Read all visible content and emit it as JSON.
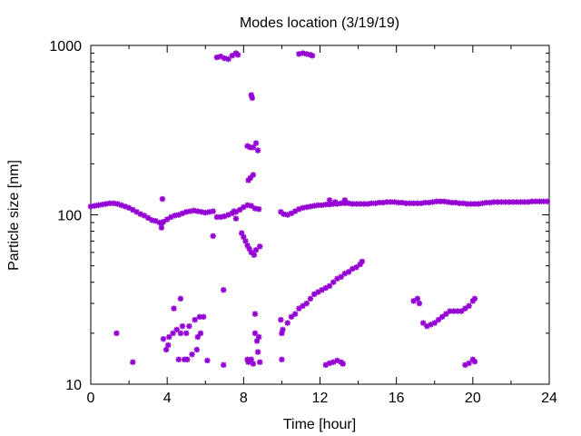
{
  "chart_data": {
    "type": "scatter",
    "title": "Modes location (3/19/19)",
    "xlabel": "Time [hour]",
    "ylabel": "Particle size [nm]",
    "xlim": [
      0,
      24
    ],
    "ylim": [
      10,
      1000
    ],
    "yscale": "log",
    "x_ticks": [
      0,
      4,
      8,
      12,
      16,
      20,
      24
    ],
    "x_tick_labels": [
      "0",
      "4",
      "8",
      "12",
      "16",
      "20",
      "24"
    ],
    "y_ticks": [
      10,
      100,
      1000
    ],
    "y_tick_labels": [
      "10",
      "100",
      "1000"
    ],
    "grid": false,
    "legend": "none",
    "marker_color": "#9400d3",
    "series": [
      {
        "points": [
          [
            0.0,
            112
          ],
          [
            0.2,
            113
          ],
          [
            0.4,
            114
          ],
          [
            0.6,
            115
          ],
          [
            0.8,
            116
          ],
          [
            1.0,
            117
          ],
          [
            1.2,
            117
          ],
          [
            1.4,
            116
          ],
          [
            1.6,
            114
          ],
          [
            1.8,
            112
          ],
          [
            2.0,
            110
          ],
          [
            2.2,
            107
          ],
          [
            2.4,
            104
          ],
          [
            2.6,
            101
          ],
          [
            2.8,
            99
          ],
          [
            3.0,
            96
          ],
          [
            3.2,
            93
          ],
          [
            3.4,
            92
          ],
          [
            3.6,
            90
          ],
          [
            3.7,
            89
          ],
          [
            3.8,
            91
          ],
          [
            4.0,
            94
          ],
          [
            4.2,
            97
          ],
          [
            4.4,
            99
          ],
          [
            4.6,
            100
          ],
          [
            4.8,
            102
          ],
          [
            5.0,
            104
          ],
          [
            5.2,
            105
          ],
          [
            5.4,
            106
          ],
          [
            5.6,
            105
          ],
          [
            5.8,
            104
          ],
          [
            6.0,
            103
          ],
          [
            6.2,
            104
          ],
          [
            6.4,
            105
          ],
          [
            6.6,
            97
          ],
          [
            6.8,
            97
          ],
          [
            7.0,
            98
          ],
          [
            7.2,
            100
          ],
          [
            7.4,
            102
          ],
          [
            7.6,
            104
          ],
          [
            7.8,
            107
          ],
          [
            8.0,
            111
          ],
          [
            8.2,
            114
          ],
          [
            8.4,
            113
          ],
          [
            8.6,
            109
          ],
          [
            8.8,
            108
          ],
          [
            9.95,
            104
          ],
          [
            10.1,
            101
          ],
          [
            10.3,
            100
          ],
          [
            10.5,
            102
          ],
          [
            10.7,
            105
          ],
          [
            10.9,
            108
          ],
          [
            11.1,
            110
          ],
          [
            11.3,
            111
          ],
          [
            11.5,
            112
          ],
          [
            11.7,
            113
          ],
          [
            11.9,
            114
          ],
          [
            12.1,
            114
          ],
          [
            12.3,
            115
          ],
          [
            12.5,
            115
          ],
          [
            12.7,
            116
          ],
          [
            12.9,
            116
          ],
          [
            13.1,
            117
          ],
          [
            13.3,
            117
          ],
          [
            13.5,
            117
          ],
          [
            13.7,
            116
          ],
          [
            13.9,
            116
          ],
          [
            14.1,
            116
          ],
          [
            14.3,
            116
          ],
          [
            14.5,
            116
          ],
          [
            14.7,
            117
          ],
          [
            14.9,
            117
          ],
          [
            15.1,
            118
          ],
          [
            15.3,
            118
          ],
          [
            15.5,
            119
          ],
          [
            15.7,
            119
          ],
          [
            15.9,
            119
          ],
          [
            16.1,
            118
          ],
          [
            16.3,
            118
          ],
          [
            16.5,
            117
          ],
          [
            16.7,
            117
          ],
          [
            16.9,
            117
          ],
          [
            17.1,
            117
          ],
          [
            17.3,
            117
          ],
          [
            17.5,
            118
          ],
          [
            17.7,
            118
          ],
          [
            17.9,
            119
          ],
          [
            18.1,
            120
          ],
          [
            18.3,
            120
          ],
          [
            18.5,
            120
          ],
          [
            18.7,
            119
          ],
          [
            18.9,
            118
          ],
          [
            19.1,
            118
          ],
          [
            19.3,
            117
          ],
          [
            19.5,
            117
          ],
          [
            19.7,
            116
          ],
          [
            19.9,
            116
          ],
          [
            20.1,
            116
          ],
          [
            20.3,
            116
          ],
          [
            20.5,
            117
          ],
          [
            20.7,
            118
          ],
          [
            20.9,
            118
          ],
          [
            21.1,
            119
          ],
          [
            21.3,
            119
          ],
          [
            21.5,
            119
          ],
          [
            21.7,
            119
          ],
          [
            21.9,
            119
          ],
          [
            22.1,
            119
          ],
          [
            22.3,
            119
          ],
          [
            22.5,
            119
          ],
          [
            22.7,
            119
          ],
          [
            22.9,
            119
          ],
          [
            23.1,
            120
          ],
          [
            23.3,
            120
          ],
          [
            23.5,
            120
          ],
          [
            23.7,
            120
          ],
          [
            23.9,
            120
          ],
          [
            12.5,
            122
          ],
          [
            12.8,
            119
          ],
          [
            13.3,
            122
          ],
          [
            3.7,
            84
          ],
          [
            3.75,
            124
          ],
          [
            1.35,
            20
          ],
          [
            2.2,
            13.5
          ],
          [
            3.8,
            18.5
          ],
          [
            3.95,
            16
          ],
          [
            4.05,
            17
          ],
          [
            4.1,
            19
          ],
          [
            4.3,
            20
          ],
          [
            4.35,
            28
          ],
          [
            4.5,
            21
          ],
          [
            4.6,
            14
          ],
          [
            4.7,
            20
          ],
          [
            4.7,
            32
          ],
          [
            4.8,
            22
          ],
          [
            4.9,
            14
          ],
          [
            5.0,
            20
          ],
          [
            5.05,
            14
          ],
          [
            5.15,
            22
          ],
          [
            5.3,
            15
          ],
          [
            5.45,
            24
          ],
          [
            5.55,
            16
          ],
          [
            5.6,
            19
          ],
          [
            5.7,
            25
          ],
          [
            5.75,
            20
          ],
          [
            5.9,
            25
          ],
          [
            6.1,
            13.8
          ],
          [
            6.4,
            75
          ],
          [
            6.95,
            36
          ],
          [
            6.95,
            13
          ],
          [
            7.5,
            105
          ],
          [
            7.6,
            95
          ],
          [
            7.9,
            78
          ],
          [
            8.0,
            74
          ],
          [
            8.1,
            70
          ],
          [
            8.2,
            66
          ],
          [
            8.3,
            63
          ],
          [
            8.4,
            60
          ],
          [
            8.55,
            58
          ],
          [
            8.65,
            62
          ],
          [
            8.85,
            65
          ],
          [
            8.4,
            14
          ],
          [
            8.5,
            13.2
          ],
          [
            8.2,
            14
          ],
          [
            8.25,
            13.5
          ],
          [
            8.6,
            20
          ],
          [
            8.7,
            18
          ],
          [
            8.8,
            19
          ],
          [
            8.85,
            13.5
          ],
          [
            8.6,
            26
          ],
          [
            8.75,
            15.5
          ],
          [
            6.6,
            850
          ],
          [
            6.8,
            860
          ],
          [
            7.0,
            840
          ],
          [
            7.2,
            830
          ],
          [
            7.4,
            870
          ],
          [
            7.6,
            900
          ],
          [
            7.7,
            880
          ],
          [
            8.4,
            510
          ],
          [
            8.45,
            490
          ],
          [
            8.2,
            255
          ],
          [
            8.35,
            250
          ],
          [
            8.5,
            250
          ],
          [
            8.65,
            265
          ],
          [
            8.75,
            240
          ],
          [
            8.35,
            165
          ],
          [
            8.5,
            172
          ],
          [
            8.25,
            160
          ],
          [
            10.9,
            890
          ],
          [
            11.1,
            900
          ],
          [
            11.3,
            890
          ],
          [
            11.5,
            880
          ],
          [
            11.6,
            870
          ],
          [
            9.95,
            24
          ],
          [
            10.0,
            20
          ],
          [
            10.05,
            21
          ],
          [
            10.0,
            14
          ],
          [
            10.3,
            23
          ],
          [
            10.5,
            25
          ],
          [
            10.7,
            26
          ],
          [
            10.9,
            28
          ],
          [
            11.1,
            29
          ],
          [
            11.3,
            30
          ],
          [
            11.5,
            32
          ],
          [
            11.7,
            34
          ],
          [
            11.9,
            35
          ],
          [
            12.1,
            36
          ],
          [
            12.3,
            37
          ],
          [
            12.5,
            38
          ],
          [
            12.7,
            40
          ],
          [
            12.9,
            42
          ],
          [
            13.1,
            43
          ],
          [
            13.3,
            45
          ],
          [
            13.5,
            46
          ],
          [
            13.7,
            48
          ],
          [
            13.9,
            49
          ],
          [
            14.1,
            51
          ],
          [
            14.2,
            53
          ],
          [
            12.3,
            13
          ],
          [
            12.5,
            13.3
          ],
          [
            12.7,
            13.5
          ],
          [
            12.9,
            13.8
          ],
          [
            13.1,
            13.5
          ],
          [
            13.2,
            13.2
          ],
          [
            16.9,
            31
          ],
          [
            17.1,
            32
          ],
          [
            17.2,
            30
          ],
          [
            17.4,
            23
          ],
          [
            17.6,
            22
          ],
          [
            17.8,
            22.5
          ],
          [
            18.0,
            23
          ],
          [
            18.2,
            24
          ],
          [
            18.4,
            25
          ],
          [
            18.6,
            26
          ],
          [
            18.8,
            27
          ],
          [
            19.0,
            27
          ],
          [
            19.2,
            27
          ],
          [
            19.4,
            27
          ],
          [
            19.6,
            28
          ],
          [
            19.8,
            29
          ],
          [
            20.0,
            31
          ],
          [
            20.1,
            32
          ],
          [
            19.6,
            13
          ],
          [
            19.8,
            13.3
          ],
          [
            20.0,
            14
          ],
          [
            20.1,
            13.6
          ]
        ]
      }
    ]
  }
}
